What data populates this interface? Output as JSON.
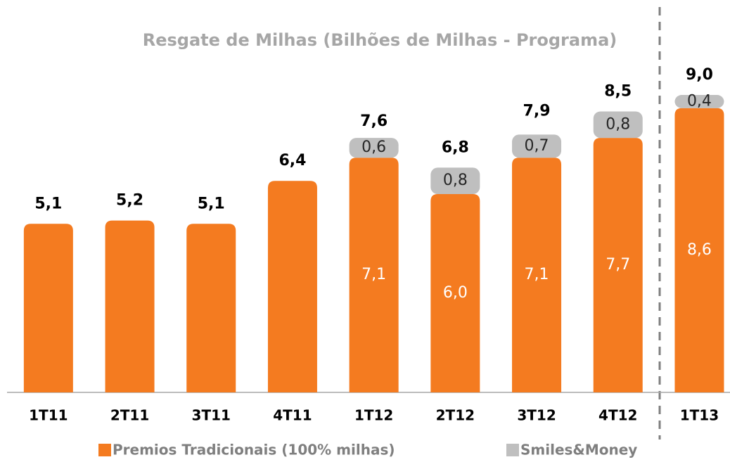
{
  "chart_data": {
    "type": "stacked_bar",
    "title": "Resgate de Milhas (Bilhões de Milhas - Programa)",
    "categories": [
      "1T11",
      "2T11",
      "3T11",
      "4T11",
      "1T12",
      "2T12",
      "3T12",
      "4T12",
      "1T13"
    ],
    "series": [
      {
        "name": "Premios Tradicionais (100% milhas)",
        "color": "#f47b20",
        "values": [
          5.1,
          5.2,
          5.1,
          6.4,
          7.1,
          6.0,
          7.1,
          7.7,
          8.6
        ],
        "value_labels": [
          null,
          null,
          null,
          null,
          "7,1",
          "6,0",
          "7,1",
          "7,7",
          "8,6"
        ]
      },
      {
        "name": "Smiles&Money",
        "color": "#bfbfbf",
        "values": [
          null,
          null,
          null,
          null,
          0.6,
          0.8,
          0.7,
          0.8,
          0.4
        ],
        "value_labels": [
          null,
          null,
          null,
          null,
          "0,6",
          "0,8",
          "0,7",
          "0,8",
          "0,4"
        ]
      }
    ],
    "totals": [
      5.1,
      5.2,
      5.1,
      6.4,
      7.6,
      6.8,
      7.9,
      8.5,
      9.0
    ],
    "total_labels": [
      "5,1",
      "5,2",
      "5,1",
      "6,4",
      "7,6",
      "6,8",
      "7,9",
      "8,5",
      "9,0"
    ],
    "ylim": [
      0,
      11
    ]
  }
}
